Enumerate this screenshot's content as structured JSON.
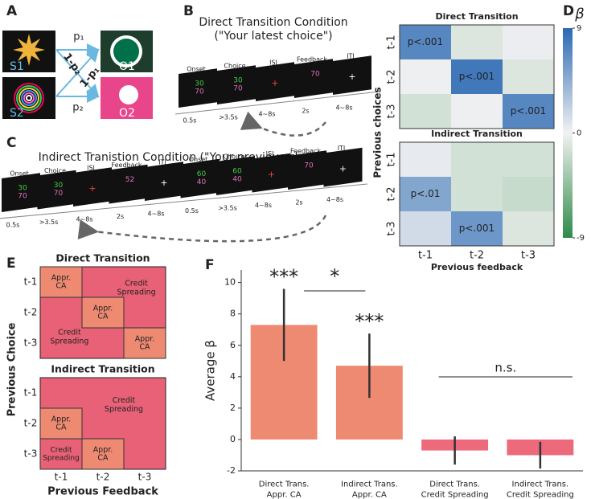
{
  "panel_a": {
    "label": "A",
    "stimuli": [
      "S1",
      "S2"
    ],
    "outcomes": [
      "O1",
      "O2"
    ],
    "probabilities": [
      "p₁",
      "1-p₂",
      "1-p₁",
      "p₂"
    ]
  },
  "panel_b": {
    "label": "B",
    "title": "Direct Transition Condition",
    "subtitle": "(\"Your latest choice\")",
    "screens": [
      "Onset",
      "Choice",
      "ISI",
      "Feedback",
      "ITI"
    ],
    "durations": [
      "0.5s",
      ">3.5s",
      "4~8s",
      "2s",
      "4~8s"
    ],
    "numbers": [
      [
        "30",
        "70"
      ],
      [
        "30",
        "70"
      ],
      null,
      [
        "70"
      ],
      null
    ]
  },
  "panel_c": {
    "label": "C",
    "title": "Indirect Tranistion Condition (\"Your previous choice\")",
    "screens": [
      "Onset",
      "Choice",
      "ISI",
      "Feedback",
      "ITI",
      "Onset",
      "Choice",
      "ISI",
      "Feedback",
      "ITI"
    ],
    "durations": [
      "0.5s",
      ">3.5s",
      "4~8s",
      "2s",
      "4~8s",
      "0.5s",
      ">3.5s",
      "4~8s",
      "2s",
      "4~8s"
    ],
    "numbers": [
      [
        "30",
        "70"
      ],
      [
        "30",
        "70"
      ],
      null,
      [
        "52"
      ],
      null,
      [
        "60",
        "40"
      ],
      [
        "60",
        "40"
      ],
      null,
      [
        "70"
      ],
      null
    ]
  },
  "panel_d_label": "D",
  "chart_data": [
    {
      "type": "heatmap",
      "title": "Direct Transition",
      "rows": [
        "t-1",
        "t-2",
        "t-3"
      ],
      "cols": [
        "t-1",
        "t-2",
        "t-3"
      ],
      "values": [
        [
          7,
          -1,
          0.3
        ],
        [
          0.2,
          8,
          -1
        ],
        [
          -1.5,
          0.2,
          7
        ]
      ],
      "cell_labels": [
        [
          "p<.001",
          null,
          null
        ],
        [
          null,
          "p<.001",
          null
        ],
        [
          null,
          null,
          "p<.001"
        ]
      ],
      "zlim": [
        -9,
        9
      ],
      "zticks": [
        -9,
        0,
        9
      ],
      "colorbar_label": "β",
      "ylabel": "Previous choices"
    },
    {
      "type": "heatmap",
      "title": "Indirect Transition",
      "rows": [
        "t-1",
        "t-2",
        "t-3"
      ],
      "cols": [
        "t-1",
        "t-2",
        "t-3"
      ],
      "values": [
        [
          0.5,
          -1.5,
          -1.5
        ],
        [
          5,
          -1.5,
          -2
        ],
        [
          1.5,
          6,
          -1
        ]
      ],
      "cell_labels": [
        [
          null,
          null,
          null
        ],
        [
          "p<.01",
          null,
          null
        ],
        [
          null,
          "p<.001",
          null
        ]
      ],
      "zlim": [
        -9,
        9
      ],
      "xlabel": "Previous feedback"
    },
    {
      "type": "bar",
      "label": "F",
      "categories": [
        [
          "Direct Trans.",
          "Appr. CA"
        ],
        [
          "Indirect Trans.",
          "Appr. CA"
        ],
        [
          "Direct Trans.",
          "Credit Spreading"
        ],
        [
          "Indirect Trans.",
          "Credit Spreading"
        ]
      ],
      "values": [
        7.3,
        4.7,
        -0.7,
        -1.0
      ],
      "errors": [
        2.3,
        2.05,
        0.9,
        0.85
      ],
      "colors": [
        "#ef8a72",
        "#ef8a72",
        "#ec6a7c",
        "#ec6a7c"
      ],
      "ylim": [
        -2,
        10.8
      ],
      "yticks": [
        -2,
        0,
        2,
        4,
        6,
        8,
        10
      ],
      "ylabel": "Average β",
      "annotations": {
        "bar_stars": [
          "***",
          "***"
        ],
        "pair_1_2": "*",
        "pair_3_4": "n.s."
      }
    }
  ],
  "panel_e": {
    "label": "E",
    "rows": [
      "t-1",
      "t-2",
      "t-3"
    ],
    "cols": [
      "t-1",
      "t-2",
      "t-3"
    ],
    "xlabel": "Previous Feedback",
    "ylabel": "Previous Choice",
    "matrices": [
      {
        "title": "Direct Transition",
        "appr": [
          [
            "Appr.",
            "CA"
          ],
          [
            "Appr.",
            "CA"
          ],
          [
            "Appr.",
            "CA"
          ]
        ],
        "spread": [
          [
            "Credit",
            "Spreading"
          ],
          [
            "Credit",
            "Spreading"
          ]
        ]
      },
      {
        "title": "Indirect Transition",
        "appr": [
          [
            "Appr.",
            "CA"
          ],
          [
            "Appr.",
            "CA"
          ]
        ],
        "spread": [
          [
            "Credit",
            "Spreading"
          ],
          [
            "Credit",
            "Spreading"
          ]
        ]
      }
    ]
  }
}
